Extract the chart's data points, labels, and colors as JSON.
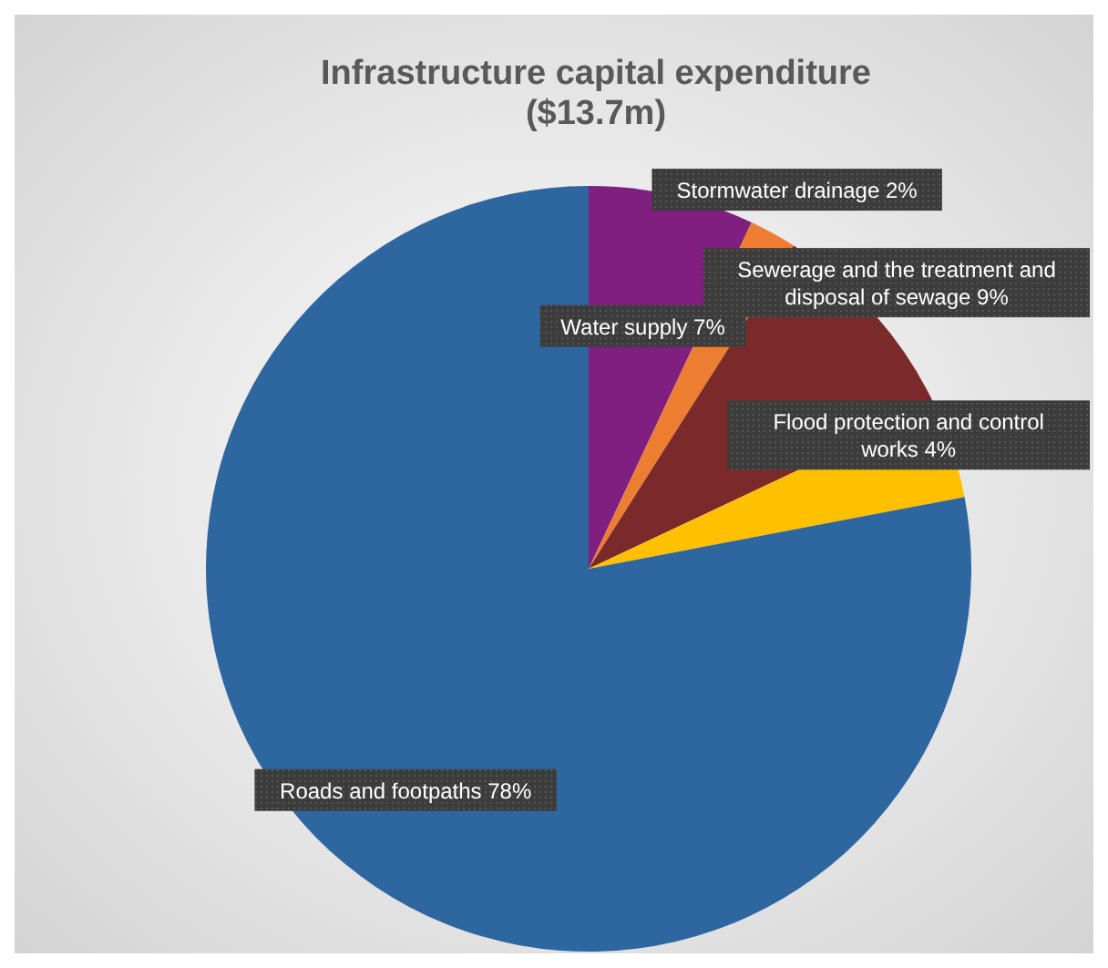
{
  "chart_data": {
    "type": "pie",
    "title": "Infrastructure capital expenditure ($13.7m)",
    "categories": [
      "Water supply",
      "Stormwater drainage",
      "Sewerage and the treatment and disposal of sewage",
      "Flood protection and control works",
      "Roads and footpaths"
    ],
    "values": [
      7,
      2,
      9,
      4,
      78
    ],
    "value_labels": [
      "7%",
      "2%",
      "9%",
      "4%",
      "78%"
    ],
    "colors": [
      "#7f1f7f",
      "#ed7d31",
      "#7b2a2a",
      "#ffc000",
      "#2e67a0"
    ]
  }
}
